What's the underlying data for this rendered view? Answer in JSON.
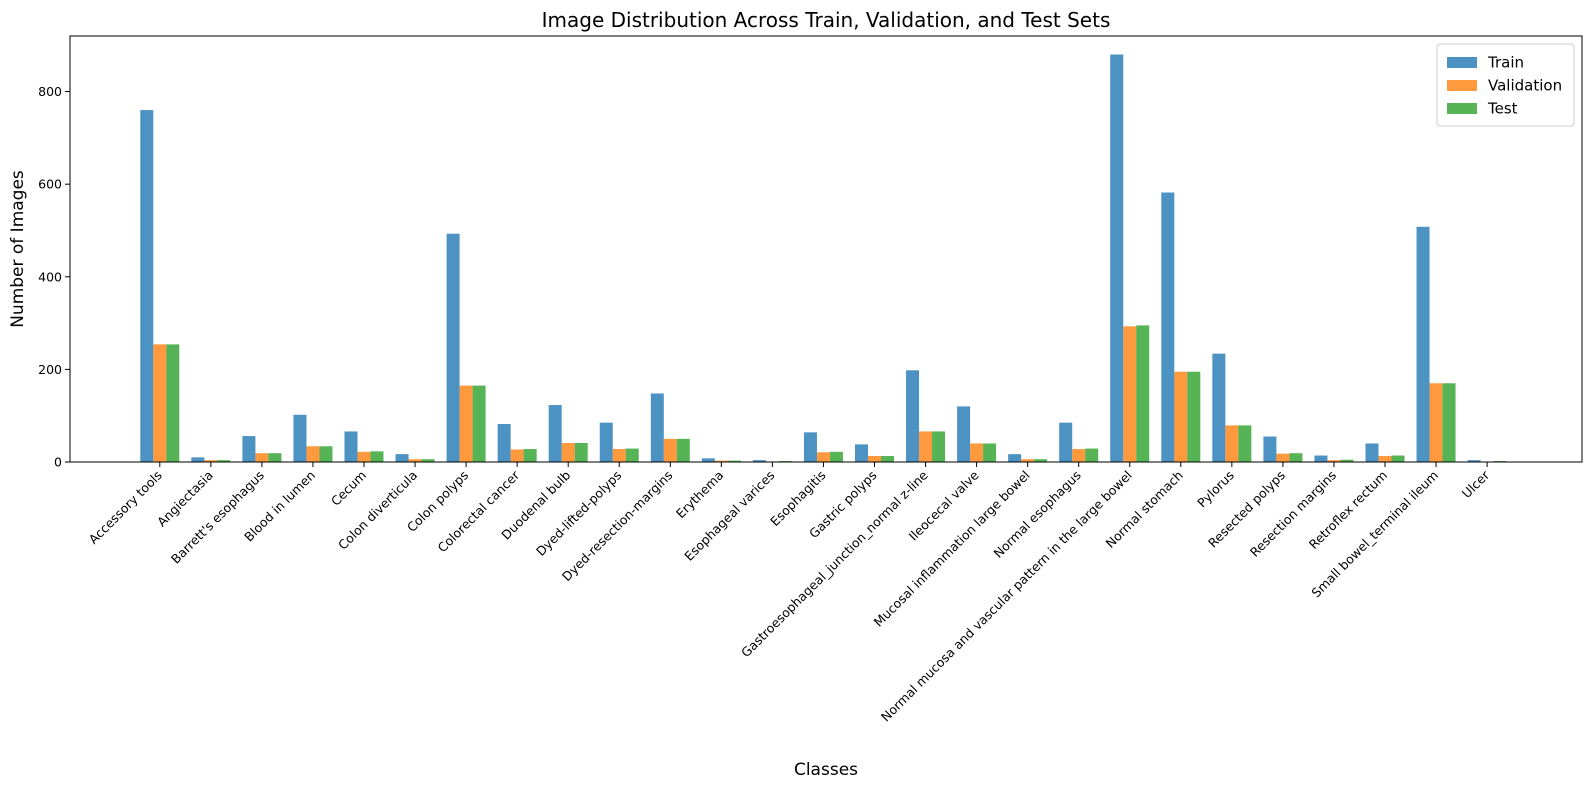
{
  "chart_data": {
    "type": "bar",
    "title": "Image Distribution Across Train, Validation, and Test Sets",
    "xlabel": "Classes",
    "ylabel": "Number of Images",
    "ylim": [
      0,
      920
    ],
    "yticks": [
      0,
      200,
      400,
      600,
      800
    ],
    "grid": false,
    "legend_position": "top-right",
    "categories": [
      "Accessory tools",
      "Angiectasia",
      "Barrett's esophagus",
      "Blood in lumen",
      "Cecum",
      "Colon diverticula",
      "Colon polyps",
      "Colorectal cancer",
      "Duodenal bulb",
      "Dyed-lifted-polyps",
      "Dyed-resection-margins",
      "Erythema",
      "Esophageal varices",
      "Esophagitis",
      "Gastric polyps",
      "Gastroesophageal_junction_normal z-line",
      "Ileocecal valve",
      "Mucosal inflammation large bowel",
      "Normal esophagus",
      "Normal mucosa and vascular pattern in the large bowel",
      "Normal stomach",
      "Pylorus",
      "Resected polyps",
      "Resection margins",
      "Retroflex rectum",
      "Small bowel_terminal ileum",
      "Ulcer"
    ],
    "series": [
      {
        "name": "Train",
        "color": "#1f77b4",
        "values": [
          760,
          10,
          56,
          102,
          66,
          17,
          493,
          82,
          123,
          85,
          148,
          8,
          4,
          64,
          38,
          198,
          120,
          17,
          85,
          880,
          582,
          234,
          55,
          14,
          40,
          508,
          4
        ]
      },
      {
        "name": "Validation",
        "color": "#ff7f0e",
        "values": [
          254,
          4,
          19,
          34,
          22,
          6,
          165,
          27,
          41,
          28,
          50,
          3,
          1,
          21,
          13,
          66,
          40,
          6,
          28,
          293,
          195,
          79,
          18,
          4,
          13,
          170,
          1
        ]
      },
      {
        "name": "Test",
        "color": "#2ca02c",
        "values": [
          254,
          4,
          19,
          34,
          23,
          6,
          165,
          28,
          41,
          29,
          50,
          3,
          2,
          22,
          13,
          66,
          40,
          6,
          29,
          295,
          195,
          79,
          19,
          5,
          14,
          170,
          2
        ]
      }
    ]
  }
}
